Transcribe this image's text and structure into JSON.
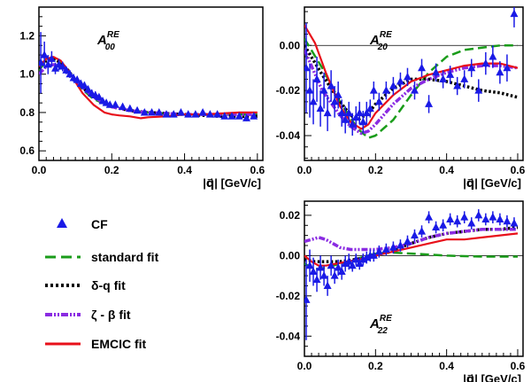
{
  "chart_data": [
    {
      "panel": "A00",
      "type": "scatter",
      "label_main": "A",
      "label_sup": "RE",
      "label_sub": "00",
      "xlabel": "|q⃗| [GeV/c]",
      "xlim": [
        0.0,
        0.615
      ],
      "ylim": [
        0.55,
        1.35
      ],
      "xticks": [
        0.0,
        0.2,
        0.4,
        0.6
      ],
      "xtick_labels": [
        "0.0",
        "0.2",
        "0.4",
        "0.6"
      ],
      "yticks": [
        0.6,
        0.8,
        1.0,
        1.2
      ],
      "ytick_labels": [
        "0.6",
        "0.8",
        "1.0",
        "1.2"
      ],
      "zero_line": false,
      "cf": {
        "x": [
          0.005,
          0.015,
          0.025,
          0.035,
          0.045,
          0.055,
          0.065,
          0.075,
          0.085,
          0.095,
          0.105,
          0.115,
          0.125,
          0.135,
          0.145,
          0.155,
          0.165,
          0.175,
          0.185,
          0.195,
          0.21,
          0.23,
          0.25,
          0.27,
          0.29,
          0.31,
          0.33,
          0.35,
          0.37,
          0.39,
          0.41,
          0.43,
          0.45,
          0.47,
          0.49,
          0.51,
          0.53,
          0.55,
          0.57,
          0.59
        ],
        "y": [
          1.06,
          1.1,
          1.05,
          1.08,
          1.03,
          1.05,
          1.04,
          1.02,
          1.0,
          0.98,
          0.97,
          0.95,
          0.94,
          0.92,
          0.9,
          0.89,
          0.88,
          0.86,
          0.85,
          0.84,
          0.84,
          0.83,
          0.82,
          0.81,
          0.8,
          0.8,
          0.8,
          0.79,
          0.79,
          0.8,
          0.79,
          0.79,
          0.8,
          0.79,
          0.79,
          0.78,
          0.78,
          0.78,
          0.77,
          0.78
        ],
        "err": [
          0.16,
          0.07,
          0.05,
          0.04,
          0.03,
          0.03,
          0.025,
          0.02,
          0.02,
          0.02,
          0.02,
          0.02,
          0.02,
          0.02,
          0.02,
          0.02,
          0.015,
          0.015,
          0.015,
          0.015,
          0.015,
          0.015,
          0.015,
          0.015,
          0.015,
          0.015,
          0.015,
          0.015,
          0.015,
          0.015,
          0.015,
          0.015,
          0.015,
          0.015,
          0.015,
          0.015,
          0.015,
          0.015,
          0.015,
          0.015
        ]
      },
      "series": [
        {
          "name": "standard fit",
          "x": [
            0.0,
            0.02,
            0.04,
            0.06,
            0.08,
            0.1,
            0.12,
            0.15,
            0.2,
            0.25,
            0.3,
            0.4,
            0.5,
            0.6
          ],
          "y": [
            1.02,
            1.07,
            1.08,
            1.06,
            1.02,
            0.97,
            0.92,
            0.87,
            0.83,
            0.81,
            0.8,
            0.79,
            0.79,
            0.79
          ]
        },
        {
          "name": "δ-q fit",
          "x": [
            0.0,
            0.02,
            0.04,
            0.06,
            0.08,
            0.1,
            0.12,
            0.15,
            0.2,
            0.25,
            0.3,
            0.4,
            0.5,
            0.6
          ],
          "y": [
            1.03,
            1.07,
            1.08,
            1.06,
            1.02,
            0.97,
            0.93,
            0.88,
            0.83,
            0.81,
            0.8,
            0.79,
            0.78,
            0.78
          ]
        },
        {
          "name": "ζ - β fit",
          "x": [
            0.0,
            0.02,
            0.04,
            0.06,
            0.08,
            0.1,
            0.12,
            0.15,
            0.2,
            0.25,
            0.3,
            0.4,
            0.5,
            0.6
          ],
          "y": [
            1.0,
            1.04,
            1.05,
            1.04,
            1.01,
            0.97,
            0.93,
            0.88,
            0.83,
            0.81,
            0.8,
            0.79,
            0.79,
            0.79
          ]
        },
        {
          "name": "EMCIC fit",
          "x": [
            0.0,
            0.02,
            0.04,
            0.06,
            0.08,
            0.1,
            0.12,
            0.15,
            0.18,
            0.2,
            0.22,
            0.25,
            0.28,
            0.3,
            0.35,
            0.4,
            0.45,
            0.5,
            0.55,
            0.6
          ],
          "y": [
            1.04,
            1.08,
            1.09,
            1.07,
            1.02,
            0.96,
            0.9,
            0.84,
            0.8,
            0.79,
            0.785,
            0.78,
            0.77,
            0.775,
            0.78,
            0.79,
            0.79,
            0.795,
            0.8,
            0.8
          ]
        }
      ]
    },
    {
      "panel": "A20",
      "type": "scatter",
      "label_main": "A",
      "label_sup": "RE",
      "label_sub": "20",
      "xlabel": "|q⃗| [GeV/c]",
      "xlim": [
        0.0,
        0.615
      ],
      "ylim": [
        -0.051,
        0.017
      ],
      "xticks": [
        0.0,
        0.2,
        0.4,
        0.6
      ],
      "xtick_labels": [
        "0.0",
        "0.2",
        "0.4",
        "0.6"
      ],
      "yticks": [
        -0.04,
        -0.02,
        0.0
      ],
      "ytick_labels": [
        "-0.04",
        "-0.02",
        "0.00"
      ],
      "zero_line": true,
      "cf": {
        "x": [
          0.005,
          0.015,
          0.025,
          0.035,
          0.045,
          0.055,
          0.065,
          0.075,
          0.085,
          0.095,
          0.105,
          0.115,
          0.125,
          0.135,
          0.145,
          0.155,
          0.165,
          0.175,
          0.185,
          0.195,
          0.21,
          0.23,
          0.25,
          0.27,
          0.29,
          0.31,
          0.33,
          0.35,
          0.37,
          0.39,
          0.41,
          0.43,
          0.45,
          0.47,
          0.49,
          0.51,
          0.53,
          0.55,
          0.57,
          0.59
        ],
        "y": [
          -0.01,
          -0.02,
          -0.025,
          -0.015,
          -0.028,
          -0.02,
          -0.03,
          -0.018,
          -0.025,
          -0.022,
          -0.03,
          -0.033,
          -0.03,
          -0.035,
          -0.032,
          -0.03,
          -0.034,
          -0.03,
          -0.028,
          -0.02,
          -0.025,
          -0.02,
          -0.018,
          -0.016,
          -0.014,
          -0.02,
          -0.01,
          -0.026,
          -0.012,
          -0.015,
          -0.013,
          -0.018,
          -0.015,
          -0.01,
          -0.02,
          -0.008,
          -0.005,
          -0.012,
          -0.01,
          0.014
        ],
        "err": [
          0.02,
          0.012,
          0.01,
          0.01,
          0.008,
          0.008,
          0.008,
          0.007,
          0.007,
          0.006,
          0.006,
          0.006,
          0.005,
          0.005,
          0.005,
          0.005,
          0.005,
          0.005,
          0.004,
          0.004,
          0.004,
          0.004,
          0.004,
          0.004,
          0.004,
          0.004,
          0.004,
          0.004,
          0.004,
          0.004,
          0.004,
          0.004,
          0.004,
          0.004,
          0.005,
          0.005,
          0.005,
          0.005,
          0.006,
          0.006
        ]
      },
      "series": [
        {
          "name": "standard fit",
          "x": [
            0.0,
            0.05,
            0.1,
            0.15,
            0.18,
            0.2,
            0.25,
            0.3,
            0.35,
            0.4,
            0.45,
            0.5,
            0.55,
            0.6
          ],
          "y": [
            0.003,
            -0.01,
            -0.025,
            -0.037,
            -0.041,
            -0.04,
            -0.033,
            -0.022,
            -0.012,
            -0.005,
            -0.002,
            -0.001,
            0.0,
            0.0
          ]
        },
        {
          "name": "δ-q fit",
          "x": [
            0.0,
            0.05,
            0.1,
            0.13,
            0.15,
            0.18,
            0.2,
            0.25,
            0.3,
            0.35,
            0.4,
            0.45,
            0.5,
            0.55,
            0.6
          ],
          "y": [
            0.0,
            -0.013,
            -0.025,
            -0.031,
            -0.033,
            -0.03,
            -0.026,
            -0.019,
            -0.015,
            -0.015,
            -0.016,
            -0.018,
            -0.02,
            -0.021,
            -0.023
          ]
        },
        {
          "name": "ζ - β fit",
          "x": [
            0.0,
            0.05,
            0.1,
            0.13,
            0.16,
            0.18,
            0.2,
            0.25,
            0.3,
            0.35,
            0.4,
            0.45,
            0.5,
            0.55,
            0.6
          ],
          "y": [
            -0.002,
            -0.02,
            -0.031,
            -0.036,
            -0.039,
            -0.038,
            -0.035,
            -0.026,
            -0.019,
            -0.015,
            -0.012,
            -0.01,
            -0.009,
            -0.009,
            -0.01
          ]
        },
        {
          "name": "EMCIC fit",
          "x": [
            0.0,
            0.03,
            0.06,
            0.1,
            0.13,
            0.16,
            0.18,
            0.2,
            0.25,
            0.3,
            0.35,
            0.4,
            0.45,
            0.5,
            0.55,
            0.6
          ],
          "y": [
            0.009,
            0.001,
            -0.012,
            -0.027,
            -0.034,
            -0.037,
            -0.035,
            -0.03,
            -0.022,
            -0.016,
            -0.013,
            -0.011,
            -0.009,
            -0.008,
            -0.008,
            -0.01
          ]
        }
      ]
    },
    {
      "panel": "A22",
      "type": "scatter",
      "label_main": "A",
      "label_sup": "RE",
      "label_sub": "22",
      "xlabel": "|q⃗| [GeV/c]",
      "xlim": [
        0.0,
        0.615
      ],
      "ylim": [
        -0.05,
        0.027
      ],
      "xticks": [
        0.0,
        0.2,
        0.4,
        0.6
      ],
      "xtick_labels": [
        "0.0",
        "0.2",
        "0.4",
        "0.6"
      ],
      "yticks": [
        -0.04,
        -0.02,
        0.0,
        0.02
      ],
      "ytick_labels": [
        "-0.04",
        "-0.02",
        "0.00",
        "0.02"
      ],
      "zero_line": true,
      "cf": {
        "x": [
          0.005,
          0.015,
          0.025,
          0.035,
          0.045,
          0.055,
          0.065,
          0.075,
          0.085,
          0.095,
          0.105,
          0.115,
          0.125,
          0.135,
          0.145,
          0.155,
          0.165,
          0.175,
          0.185,
          0.195,
          0.21,
          0.23,
          0.25,
          0.27,
          0.29,
          0.31,
          0.33,
          0.35,
          0.37,
          0.39,
          0.41,
          0.43,
          0.45,
          0.47,
          0.49,
          0.51,
          0.53,
          0.55,
          0.57,
          0.59
        ],
        "y": [
          -0.022,
          -0.005,
          -0.008,
          -0.012,
          -0.006,
          -0.01,
          -0.015,
          -0.005,
          -0.01,
          -0.006,
          -0.008,
          -0.004,
          -0.003,
          -0.005,
          -0.002,
          -0.004,
          -0.002,
          -0.001,
          0.0,
          0.0,
          0.002,
          0.003,
          0.004,
          0.005,
          0.007,
          0.01,
          0.012,
          0.019,
          0.014,
          0.015,
          0.018,
          0.017,
          0.019,
          0.016,
          0.02,
          0.018,
          0.019,
          0.018,
          0.017,
          0.016
        ],
        "err": [
          0.02,
          0.008,
          0.007,
          0.006,
          0.006,
          0.005,
          0.005,
          0.005,
          0.004,
          0.004,
          0.004,
          0.004,
          0.004,
          0.003,
          0.003,
          0.003,
          0.003,
          0.003,
          0.003,
          0.003,
          0.003,
          0.003,
          0.003,
          0.003,
          0.003,
          0.003,
          0.003,
          0.003,
          0.003,
          0.003,
          0.003,
          0.003,
          0.003,
          0.003,
          0.003,
          0.003,
          0.003,
          0.003,
          0.003,
          0.003
        ]
      },
      "series": [
        {
          "name": "standard fit",
          "x": [
            0.0,
            0.03,
            0.06,
            0.1,
            0.14,
            0.18,
            0.2,
            0.25,
            0.3,
            0.35,
            0.4,
            0.45,
            0.5,
            0.55,
            0.6
          ],
          "y": [
            -0.004,
            -0.007,
            -0.006,
            -0.004,
            -0.002,
            0.0,
            0.001,
            0.0015,
            0.001,
            0.0005,
            0.0,
            -0.0003,
            -0.0005,
            -0.0005,
            -0.0005
          ]
        },
        {
          "name": "δ-q fit",
          "x": [
            0.0,
            0.03,
            0.06,
            0.1,
            0.14,
            0.18,
            0.2,
            0.25,
            0.3,
            0.35,
            0.4,
            0.45,
            0.5,
            0.55,
            0.6
          ],
          "y": [
            -0.002,
            -0.003,
            -0.003,
            -0.003,
            -0.002,
            -0.001,
            0.0,
            0.003,
            0.006,
            0.009,
            0.011,
            0.012,
            0.013,
            0.013,
            0.014
          ]
        },
        {
          "name": "ζ - β fit",
          "x": [
            0.0,
            0.02,
            0.04,
            0.06,
            0.08,
            0.1,
            0.13,
            0.16,
            0.2,
            0.25,
            0.3,
            0.35,
            0.4,
            0.45,
            0.5,
            0.55,
            0.6
          ],
          "y": [
            0.007,
            0.008,
            0.009,
            0.008,
            0.006,
            0.004,
            0.003,
            0.003,
            0.003,
            0.004,
            0.006,
            0.009,
            0.011,
            0.012,
            0.013,
            0.013,
            0.013
          ]
        },
        {
          "name": "EMCIC fit",
          "x": [
            0.0,
            0.02,
            0.04,
            0.06,
            0.09,
            0.12,
            0.15,
            0.18,
            0.2,
            0.25,
            0.3,
            0.35,
            0.4,
            0.45,
            0.5,
            0.55,
            0.6
          ],
          "y": [
            0.0,
            -0.003,
            -0.005,
            -0.005,
            -0.004,
            -0.003,
            -0.002,
            -0.001,
            0.0,
            0.002,
            0.004,
            0.006,
            0.008,
            0.008,
            0.009,
            0.01,
            0.011
          ]
        }
      ]
    }
  ],
  "legend": [
    {
      "key": "cf",
      "label": "CF"
    },
    {
      "key": "standard",
      "label": "standard fit"
    },
    {
      "key": "deltaq",
      "label": "δ-q fit"
    },
    {
      "key": "zetabeta",
      "label": "ζ - β fit"
    },
    {
      "key": "emcic",
      "label": "EMCIC fit"
    }
  ],
  "colors": {
    "cf": "#1a1ae6",
    "standard": "#1a9c1a",
    "deltaq": "#000000",
    "zetabeta": "#8a2be2",
    "emcic": "#e8101a"
  }
}
